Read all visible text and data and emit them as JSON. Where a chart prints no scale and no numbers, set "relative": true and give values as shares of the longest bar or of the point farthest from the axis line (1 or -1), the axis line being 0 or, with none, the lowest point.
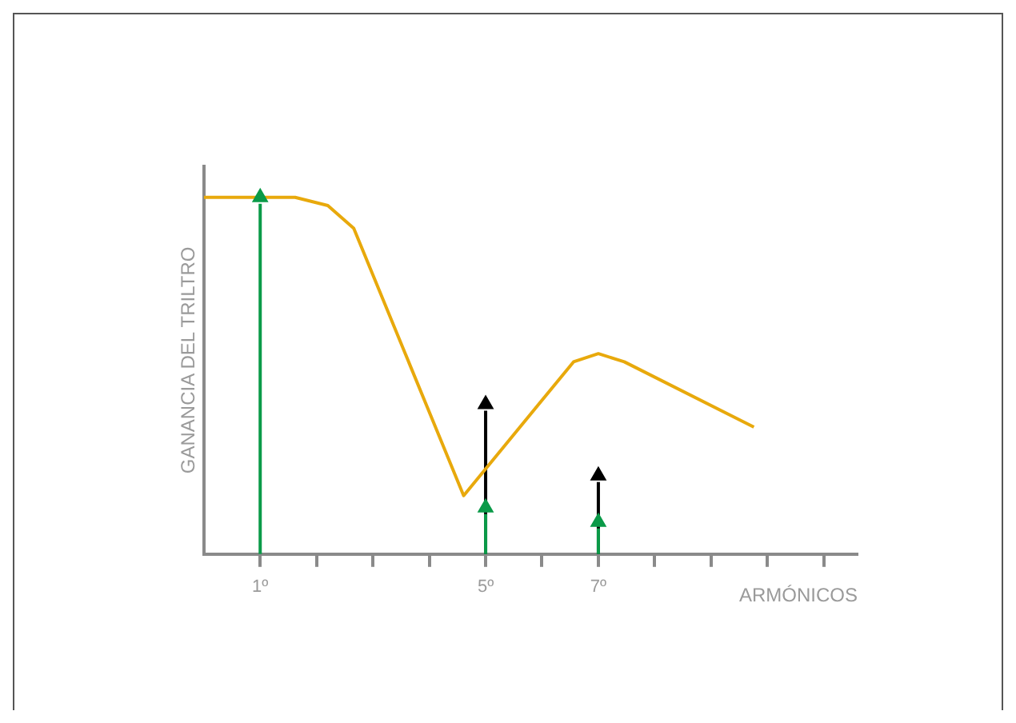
{
  "chart_data": {
    "type": "line",
    "relative": true,
    "xlabel": "ARMÓNICOS",
    "ylabel": "GANANCIA DEL TRILTRO",
    "xlim": [
      0,
      11.6
    ],
    "xticks": [
      {
        "value": 1,
        "label": "1º"
      },
      {
        "value": 2,
        "label": null
      },
      {
        "value": 3,
        "label": null
      },
      {
        "value": 4,
        "label": null
      },
      {
        "value": 5,
        "label": "5º"
      },
      {
        "value": 6,
        "label": null
      },
      {
        "value": 7,
        "label": "7º"
      },
      {
        "value": 8,
        "label": null
      },
      {
        "value": 9,
        "label": null
      },
      {
        "value": 10,
        "label": null
      },
      {
        "value": 11,
        "label": null
      }
    ],
    "tick_labels": "x",
    "grid": false,
    "legend": false,
    "series": [
      {
        "color": "#e8a90c",
        "marker": "none",
        "x": [
          0,
          1.62,
          2.2,
          2.66,
          4.61,
          6.56,
          7.0,
          7.46,
          9.76
        ],
        "values": [
          1,
          1,
          0.977,
          0.913,
          0.164,
          0.539,
          0.562,
          0.539,
          0.356
        ]
      },
      {
        "type": "lollipop",
        "color": "#000000",
        "marker": "triangle",
        "x": [
          5,
          7
        ],
        "values": [
          0.42,
          0.22
        ]
      },
      {
        "type": "lollipop",
        "color": "#0a9a48",
        "marker": "triangle",
        "x": [
          1,
          5,
          7
        ],
        "values": [
          1,
          0.13,
          0.09
        ]
      }
    ]
  }
}
